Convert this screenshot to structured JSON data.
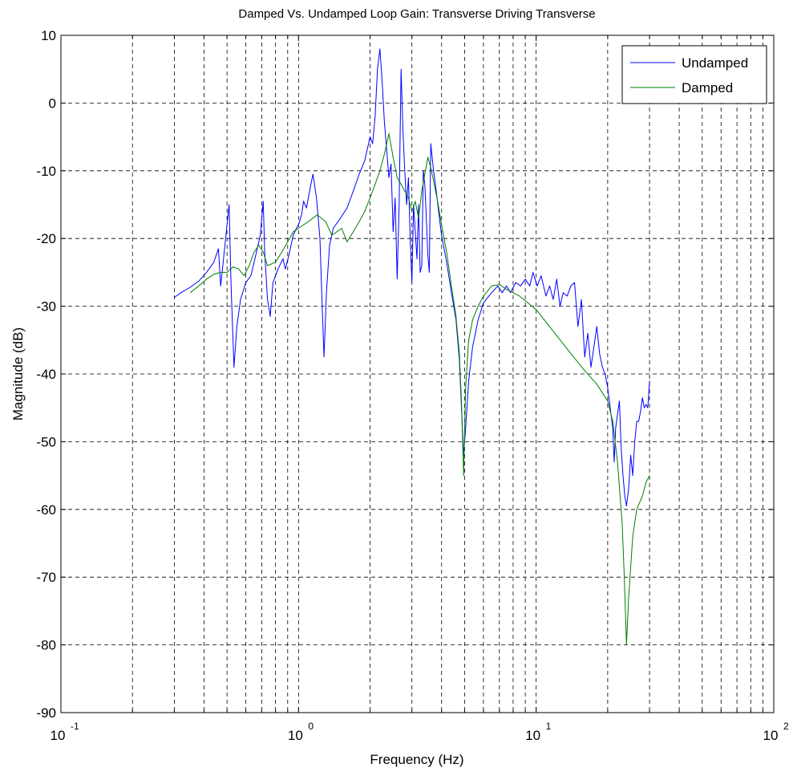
{
  "chart_data": {
    "type": "line",
    "title": "Damped Vs. Undamped Loop Gain: Transverse Driving Transverse",
    "xlabel": "Frequency (Hz)",
    "ylabel": "Magnitude (dB)",
    "x_scale": "log",
    "xlim": [
      0.1,
      100
    ],
    "ylim": [
      -90,
      10
    ],
    "grid": true,
    "legend_position": "top-right",
    "x_ticks": [
      {
        "base": "10",
        "exp": "-1",
        "value": 0.1
      },
      {
        "base": "10",
        "exp": "0",
        "value": 1
      },
      {
        "base": "10",
        "exp": "1",
        "value": 10
      },
      {
        "base": "10",
        "exp": "2",
        "value": 100
      }
    ],
    "y_ticks": [
      "10",
      "0",
      "-10",
      "-20",
      "-30",
      "-40",
      "-50",
      "-60",
      "-70",
      "-80",
      "-90"
    ],
    "series": [
      {
        "name": "Undamped",
        "color": "#0000ff",
        "points": [
          [
            0.3,
            -28.7
          ],
          [
            0.32,
            -28.0
          ],
          [
            0.35,
            -27.2
          ],
          [
            0.38,
            -26.3
          ],
          [
            0.41,
            -25.0
          ],
          [
            0.44,
            -23.5
          ],
          [
            0.46,
            -21.5
          ],
          [
            0.47,
            -27.0
          ],
          [
            0.48,
            -24.0
          ],
          [
            0.51,
            -15.0
          ],
          [
            0.52,
            -27.0
          ],
          [
            0.535,
            -39.0
          ],
          [
            0.55,
            -33.0
          ],
          [
            0.57,
            -29.0
          ],
          [
            0.6,
            -26.5
          ],
          [
            0.63,
            -25.5
          ],
          [
            0.66,
            -22.5
          ],
          [
            0.69,
            -19.5
          ],
          [
            0.71,
            -14.5
          ],
          [
            0.72,
            -22.0
          ],
          [
            0.74,
            -29.0
          ],
          [
            0.76,
            -31.5
          ],
          [
            0.78,
            -26.5
          ],
          [
            0.82,
            -24.5
          ],
          [
            0.86,
            -23.0
          ],
          [
            0.88,
            -24.5
          ],
          [
            0.91,
            -22.5
          ],
          [
            0.95,
            -19.5
          ],
          [
            0.98,
            -18.5
          ],
          [
            1.0,
            -18.0
          ],
          [
            1.03,
            -16.5
          ],
          [
            1.05,
            -14.5
          ],
          [
            1.08,
            -15.5
          ],
          [
            1.12,
            -12.5
          ],
          [
            1.15,
            -10.5
          ],
          [
            1.19,
            -14.0
          ],
          [
            1.23,
            -20.0
          ],
          [
            1.26,
            -31.0
          ],
          [
            1.28,
            -37.5
          ],
          [
            1.31,
            -28.0
          ],
          [
            1.35,
            -21.0
          ],
          [
            1.4,
            -18.5
          ],
          [
            1.5,
            -17.0
          ],
          [
            1.6,
            -15.5
          ],
          [
            1.7,
            -13.0
          ],
          [
            1.8,
            -10.5
          ],
          [
            1.9,
            -8.5
          ],
          [
            2.0,
            -5.0
          ],
          [
            2.05,
            -6.0
          ],
          [
            2.1,
            -2.0
          ],
          [
            2.15,
            5.0
          ],
          [
            2.2,
            8.0
          ],
          [
            2.25,
            3.0
          ],
          [
            2.3,
            -3.0
          ],
          [
            2.35,
            -7.0
          ],
          [
            2.4,
            -11.0
          ],
          [
            2.45,
            -9.0
          ],
          [
            2.5,
            -19.0
          ],
          [
            2.55,
            -14.0
          ],
          [
            2.6,
            -26.0
          ],
          [
            2.65,
            -15.0
          ],
          [
            2.7,
            5.0
          ],
          [
            2.75,
            -4.0
          ],
          [
            2.8,
            -10.0
          ],
          [
            2.85,
            -15.0
          ],
          [
            2.9,
            -11.0
          ],
          [
            2.95,
            -20.0
          ],
          [
            3.0,
            -26.5
          ],
          [
            3.05,
            -15.0
          ],
          [
            3.1,
            -19.0
          ],
          [
            3.15,
            -23.0
          ],
          [
            3.2,
            -15.0
          ],
          [
            3.25,
            -25.0
          ],
          [
            3.3,
            -24.0
          ],
          [
            3.35,
            -10.0
          ],
          [
            3.4,
            -12.0
          ],
          [
            3.45,
            -17.0
          ],
          [
            3.5,
            -22.5
          ],
          [
            3.55,
            -25.0
          ],
          [
            3.6,
            -6.0
          ],
          [
            3.7,
            -10.0
          ],
          [
            3.8,
            -13.0
          ],
          [
            3.9,
            -16.5
          ],
          [
            4.0,
            -19.5
          ],
          [
            4.2,
            -23.5
          ],
          [
            4.4,
            -28.0
          ],
          [
            4.6,
            -32.0
          ],
          [
            4.75,
            -38.0
          ],
          [
            4.85,
            -45.0
          ],
          [
            4.95,
            -52.0
          ],
          [
            5.05,
            -48.0
          ],
          [
            5.2,
            -41.0
          ],
          [
            5.4,
            -36.0
          ],
          [
            5.7,
            -32.0
          ],
          [
            6.0,
            -29.5
          ],
          [
            6.5,
            -28.0
          ],
          [
            6.9,
            -27.0
          ],
          [
            7.2,
            -28.0
          ],
          [
            7.5,
            -27.0
          ],
          [
            7.8,
            -28.0
          ],
          [
            8.2,
            -26.5
          ],
          [
            8.6,
            -27.0
          ],
          [
            9.0,
            -26.0
          ],
          [
            9.4,
            -27.0
          ],
          [
            9.7,
            -25.0
          ],
          [
            10.1,
            -27.0
          ],
          [
            10.5,
            -25.5
          ],
          [
            11.0,
            -28.5
          ],
          [
            11.4,
            -27.0
          ],
          [
            11.8,
            -29.0
          ],
          [
            12.2,
            -26.0
          ],
          [
            12.6,
            -30.0
          ],
          [
            13.0,
            -28.0
          ],
          [
            13.5,
            -28.5
          ],
          [
            14.0,
            -27.0
          ],
          [
            14.5,
            -26.5
          ],
          [
            15.0,
            -33.0
          ],
          [
            15.5,
            -29.0
          ],
          [
            16.0,
            -37.5
          ],
          [
            16.5,
            -34.0
          ],
          [
            17.0,
            -39.0
          ],
          [
            17.5,
            -36.0
          ],
          [
            18.0,
            -33.0
          ],
          [
            18.5,
            -37.0
          ],
          [
            19.0,
            -39.0
          ],
          [
            19.5,
            -40.0
          ],
          [
            20.0,
            -42.0
          ],
          [
            20.5,
            -45.0
          ],
          [
            21.0,
            -48.0
          ],
          [
            21.3,
            -53.0
          ],
          [
            21.6,
            -48.0
          ],
          [
            22.0,
            -46.0
          ],
          [
            22.4,
            -44.0
          ],
          [
            22.8,
            -51.0
          ],
          [
            23.2,
            -55.0
          ],
          [
            23.6,
            -58.0
          ],
          [
            24.0,
            -59.5
          ],
          [
            24.5,
            -57.0
          ],
          [
            25.0,
            -52.0
          ],
          [
            25.5,
            -55.0
          ],
          [
            26.0,
            -50.0
          ],
          [
            26.5,
            -47.0
          ],
          [
            27.0,
            -47.0
          ],
          [
            27.5,
            -45.5
          ],
          [
            28.0,
            -43.5
          ],
          [
            28.5,
            -45.0
          ],
          [
            29.0,
            -44.5
          ],
          [
            29.5,
            -45.0
          ],
          [
            30.0,
            -41.0
          ]
        ]
      },
      {
        "name": "Damped",
        "color": "#007f00",
        "points": [
          [
            0.35,
            -28.0
          ],
          [
            0.38,
            -27.0
          ],
          [
            0.41,
            -26.0
          ],
          [
            0.44,
            -25.3
          ],
          [
            0.47,
            -25.0
          ],
          [
            0.5,
            -25.0
          ],
          [
            0.53,
            -24.2
          ],
          [
            0.56,
            -24.5
          ],
          [
            0.59,
            -25.5
          ],
          [
            0.62,
            -24.0
          ],
          [
            0.65,
            -22.0
          ],
          [
            0.68,
            -21.0
          ],
          [
            0.71,
            -22.0
          ],
          [
            0.74,
            -24.0
          ],
          [
            0.8,
            -23.5
          ],
          [
            0.85,
            -22.0
          ],
          [
            0.9,
            -20.5
          ],
          [
            0.95,
            -19.0
          ],
          [
            1.0,
            -18.5
          ],
          [
            1.1,
            -17.5
          ],
          [
            1.2,
            -16.5
          ],
          [
            1.3,
            -17.5
          ],
          [
            1.38,
            -19.5
          ],
          [
            1.45,
            -19.0
          ],
          [
            1.52,
            -18.5
          ],
          [
            1.6,
            -20.5
          ],
          [
            1.7,
            -19.0
          ],
          [
            1.8,
            -17.5
          ],
          [
            1.9,
            -16.0
          ],
          [
            2.0,
            -14.0
          ],
          [
            2.1,
            -12.0
          ],
          [
            2.2,
            -10.0
          ],
          [
            2.3,
            -7.5
          ],
          [
            2.4,
            -4.5
          ],
          [
            2.5,
            -8.0
          ],
          [
            2.6,
            -11.0
          ],
          [
            2.7,
            -12.0
          ],
          [
            2.8,
            -13.0
          ],
          [
            2.9,
            -14.0
          ],
          [
            3.0,
            -16.0
          ],
          [
            3.1,
            -14.5
          ],
          [
            3.2,
            -17.0
          ],
          [
            3.3,
            -13.0
          ],
          [
            3.4,
            -10.5
          ],
          [
            3.5,
            -8.0
          ],
          [
            3.6,
            -9.5
          ],
          [
            3.7,
            -11.5
          ],
          [
            3.85,
            -14.5
          ],
          [
            4.0,
            -18.0
          ],
          [
            4.2,
            -22.0
          ],
          [
            4.4,
            -27.0
          ],
          [
            4.6,
            -31.5
          ],
          [
            4.75,
            -37.0
          ],
          [
            4.85,
            -44.0
          ],
          [
            4.95,
            -55.0
          ],
          [
            5.05,
            -42.0
          ],
          [
            5.2,
            -35.0
          ],
          [
            5.4,
            -32.0
          ],
          [
            5.7,
            -30.0
          ],
          [
            6.0,
            -28.5
          ],
          [
            6.5,
            -27.0
          ],
          [
            7.0,
            -26.8
          ],
          [
            7.5,
            -27.5
          ],
          [
            8.5,
            -28.5
          ],
          [
            10.0,
            -30.5
          ],
          [
            12.0,
            -34.0
          ],
          [
            14.0,
            -37.0
          ],
          [
            16.0,
            -39.5
          ],
          [
            18.0,
            -41.5
          ],
          [
            20.0,
            -44.0
          ],
          [
            21.0,
            -47.0
          ],
          [
            22.0,
            -53.0
          ],
          [
            23.0,
            -62.0
          ],
          [
            23.5,
            -70.0
          ],
          [
            24.0,
            -80.0
          ],
          [
            24.5,
            -73.0
          ],
          [
            25.5,
            -64.0
          ],
          [
            26.5,
            -60.0
          ],
          [
            28.0,
            -58.0
          ],
          [
            29.0,
            -56.0
          ],
          [
            30.0,
            -55.0
          ]
        ]
      }
    ]
  }
}
